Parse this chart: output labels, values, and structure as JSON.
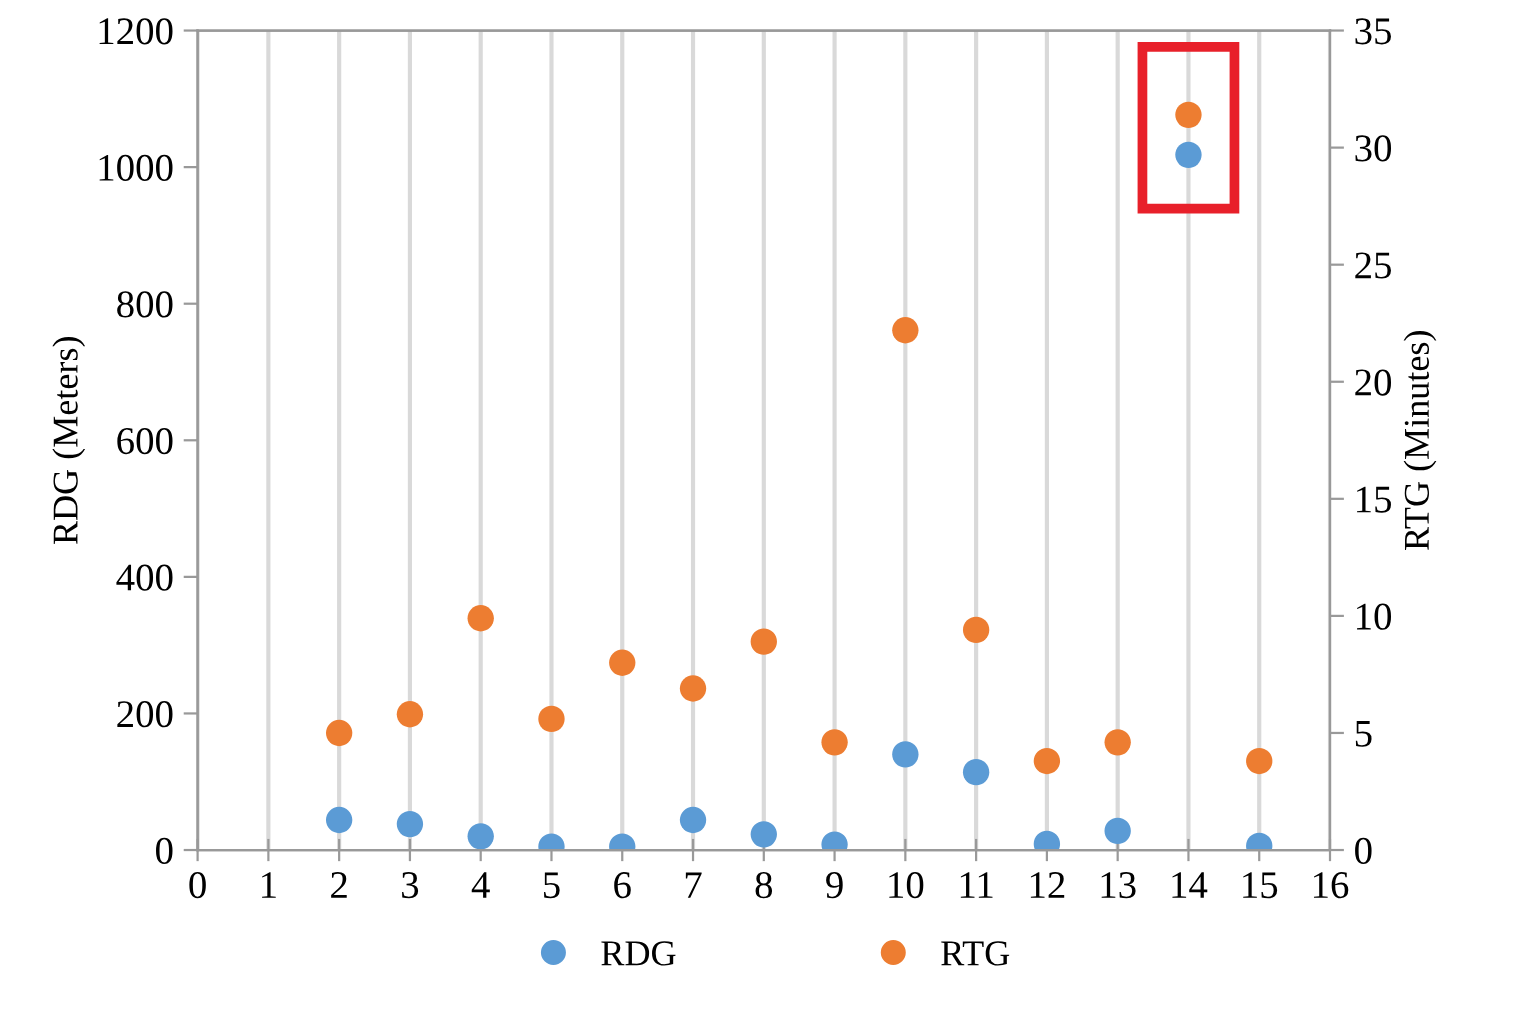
{
  "chart_data": {
    "type": "scatter",
    "x": [
      2,
      3,
      4,
      5,
      6,
      7,
      8,
      9,
      10,
      11,
      12,
      13,
      14,
      15
    ],
    "series": [
      {
        "name": "RDG",
        "color": "#5b9bd5",
        "values": [
          44,
          38,
          20,
          5,
          5,
          44,
          23,
          8,
          140,
          114,
          9,
          28,
          1018,
          6
        ]
      },
      {
        "name": "RTG",
        "color": "#ed7d31",
        "axis": "y2",
        "values": [
          5.0,
          5.8,
          9.9,
          5.6,
          8.0,
          6.9,
          8.9,
          4.6,
          22.2,
          9.4,
          3.8,
          4.6,
          31.4,
          3.8
        ]
      }
    ],
    "ylabel": "RDG (Meters)",
    "y2label": "RTG (Minutes)",
    "xlim": [
      0,
      16
    ],
    "xticks": [
      0,
      1,
      2,
      3,
      4,
      5,
      6,
      7,
      8,
      9,
      10,
      11,
      12,
      13,
      14,
      15,
      16
    ],
    "ylim": [
      0,
      1200
    ],
    "yticks": [
      0,
      200,
      400,
      600,
      800,
      1000,
      1200
    ],
    "y2lim": [
      0,
      35
    ],
    "y2ticks": [
      0,
      5,
      10,
      15,
      20,
      25,
      30,
      35
    ],
    "grid": "x",
    "legend": "bottom",
    "marker": "circle"
  }
}
